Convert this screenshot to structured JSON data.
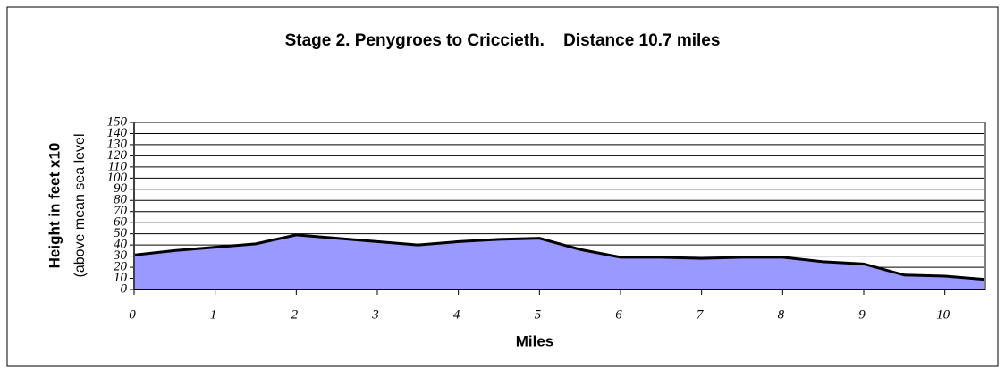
{
  "chart_data": {
    "type": "area",
    "title": "Stage 2. Penygroes to Criccieth.    Distance 10.7 miles",
    "x_label": "Miles",
    "y_label": "Height in feet x10",
    "y_label_sub": "(above mean sea level",
    "x": [
      0,
      0.5,
      1,
      1.5,
      2,
      2.5,
      3,
      3.5,
      4,
      4.5,
      5,
      5.5,
      6,
      6.5,
      7,
      7.5,
      8,
      8.5,
      9,
      9.5,
      10,
      10.5
    ],
    "values": [
      31,
      35,
      38,
      41,
      49,
      46,
      43,
      40,
      43,
      45,
      46,
      36,
      29,
      29,
      28,
      29,
      29,
      25,
      23,
      13,
      12,
      9
    ],
    "color": "#9999ff",
    "xlim": [
      0,
      10.5
    ],
    "xticks": [
      0,
      1,
      2,
      3,
      4,
      5,
      6,
      7,
      8,
      9,
      10
    ],
    "ylim": [
      0,
      150
    ],
    "yticks": [
      0,
      10,
      20,
      30,
      40,
      50,
      60,
      70,
      80,
      90,
      100,
      110,
      120,
      130,
      140,
      150
    ],
    "grid": true
  }
}
